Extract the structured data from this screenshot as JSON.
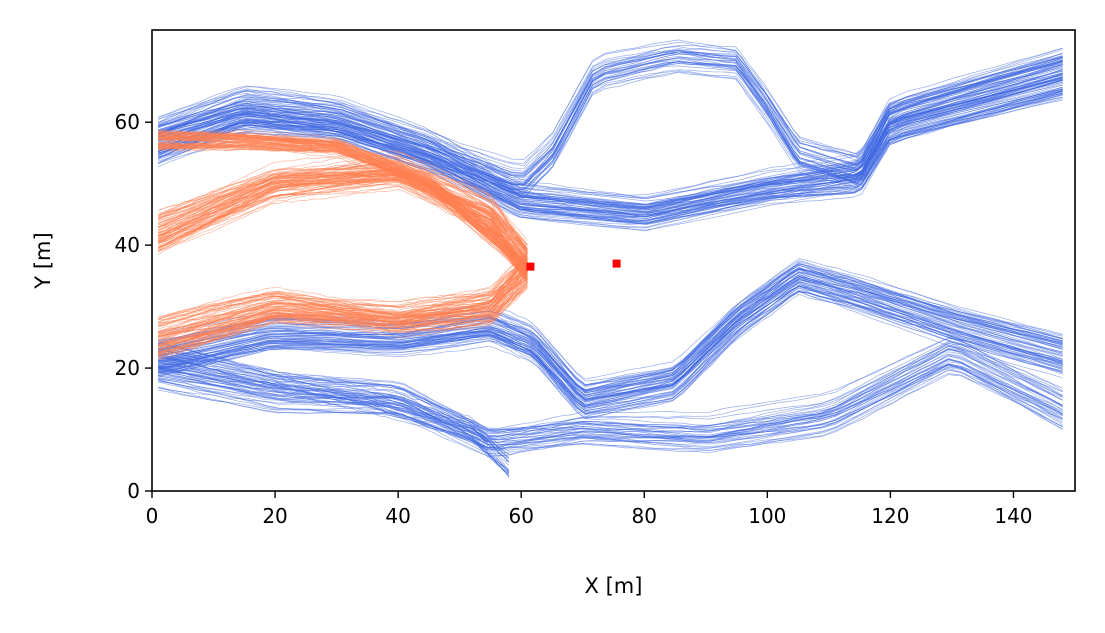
{
  "chart_data": {
    "type": "line",
    "title": "",
    "xlabel": "X [m]",
    "ylabel": "Y [m]",
    "xlim": [
      0,
      150
    ],
    "ylim": [
      0,
      75
    ],
    "xticks": [
      0,
      20,
      40,
      60,
      80,
      100,
      120,
      140
    ],
    "yticks": [
      0,
      20,
      40,
      60
    ],
    "grid": false,
    "legend": "none",
    "colors": {
      "blue": "#4169e1",
      "orange": "#ff7f50",
      "marker": "#ff0000"
    },
    "series": [
      {
        "color": "blue",
        "line_count": 240,
        "bundles": [
          {
            "points": [
              [
                1,
                57
              ],
              [
                15,
                62
              ],
              [
                30,
                60
              ],
              [
                45,
                55
              ],
              [
                60,
                47
              ],
              [
                80,
                45
              ],
              [
                100,
                49
              ],
              [
                115,
                51
              ],
              [
                120,
                60
              ],
              [
                148,
                68
              ]
            ],
            "spread": 3.5,
            "weight": 0.3
          },
          {
            "points": [
              [
                1,
                57
              ],
              [
                15,
                61
              ],
              [
                30,
                60
              ],
              [
                45,
                55
              ],
              [
                60,
                50
              ],
              [
                65,
                55
              ],
              [
                72,
                68
              ],
              [
                85,
                71
              ],
              [
                95,
                70
              ],
              [
                100,
                63
              ],
              [
                105,
                55
              ],
              [
                115,
                52
              ],
              [
                120,
                60
              ],
              [
                148,
                67
              ]
            ],
            "spread": 3,
            "weight": 0.15
          },
          {
            "points": [
              [
                1,
                22
              ],
              [
                20,
                26
              ],
              [
                40,
                25
              ],
              [
                55,
                27
              ],
              [
                62,
                24
              ],
              [
                70,
                15
              ],
              [
                85,
                18
              ],
              [
                95,
                28
              ],
              [
                105,
                35
              ],
              [
                115,
                32
              ],
              [
                130,
                27
              ],
              [
                148,
                22
              ]
            ],
            "spread": 3,
            "weight": 0.28
          },
          {
            "points": [
              [
                1,
                20
              ],
              [
                20,
                16
              ],
              [
                40,
                15
              ],
              [
                55,
                8
              ],
              [
                70,
                10
              ],
              [
                90,
                9
              ],
              [
                110,
                12
              ],
              [
                130,
                22
              ],
              [
                148,
                13
              ]
            ],
            "spread": 3.5,
            "weight": 0.17
          },
          {
            "points": [
              [
                1,
                22
              ],
              [
                20,
                18
              ],
              [
                35,
                15
              ],
              [
                52,
                10
              ],
              [
                58,
                4
              ]
            ],
            "spread": 2,
            "weight": 0.1
          }
        ]
      },
      {
        "color": "orange",
        "line_count": 240,
        "bundles": [
          {
            "points": [
              [
                1,
                57
              ],
              [
                15,
                57
              ],
              [
                30,
                56
              ],
              [
                45,
                50
              ],
              [
                57,
                40
              ],
              [
                61,
                36
              ]
            ],
            "spread": 1.5,
            "weight": 0.3
          },
          {
            "points": [
              [
                1,
                42
              ],
              [
                20,
                50
              ],
              [
                40,
                52
              ],
              [
                55,
                45
              ],
              [
                61,
                37
              ]
            ],
            "spread": 3,
            "weight": 0.35
          },
          {
            "points": [
              [
                1,
                25
              ],
              [
                20,
                30
              ],
              [
                40,
                28
              ],
              [
                55,
                30
              ],
              [
                61,
                36
              ]
            ],
            "spread": 3,
            "weight": 0.35
          }
        ]
      }
    ],
    "markers": [
      {
        "x": 61.5,
        "y": 36.5,
        "color": "marker"
      },
      {
        "x": 75.5,
        "y": 37,
        "color": "marker"
      }
    ]
  }
}
